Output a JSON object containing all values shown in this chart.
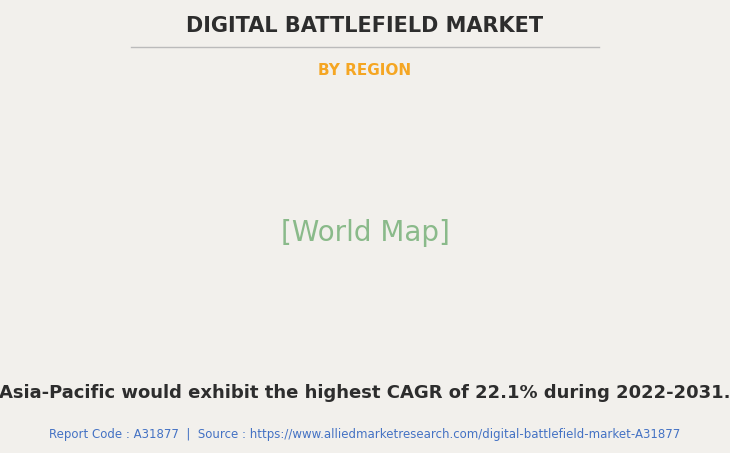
{
  "title": "DIGITAL BATTLEFIELD MARKET",
  "subtitle": "BY REGION",
  "subtitle_color": "#F5A623",
  "title_color": "#2d2d2d",
  "bg_color": "#f2f0ec",
  "body_text": "Asia-Pacific would exhibit the highest CAGR of 22.1% during 2022-2031.",
  "body_text_color": "#2d2d2d",
  "footer_text": "Report Code : A31877  |  Source : https://www.alliedmarketresearch.com/digital-battlefield-market-A31877",
  "footer_color": "#4472C4",
  "map_land_color": "#8aba8a",
  "map_usa_color": "#f0eeec",
  "map_edge_color": "#6aaabb",
  "map_shadow_color": "#888888",
  "title_line_color": "#bbbbbb",
  "title_fontsize": 15,
  "subtitle_fontsize": 11,
  "body_fontsize": 13,
  "footer_fontsize": 8.5
}
